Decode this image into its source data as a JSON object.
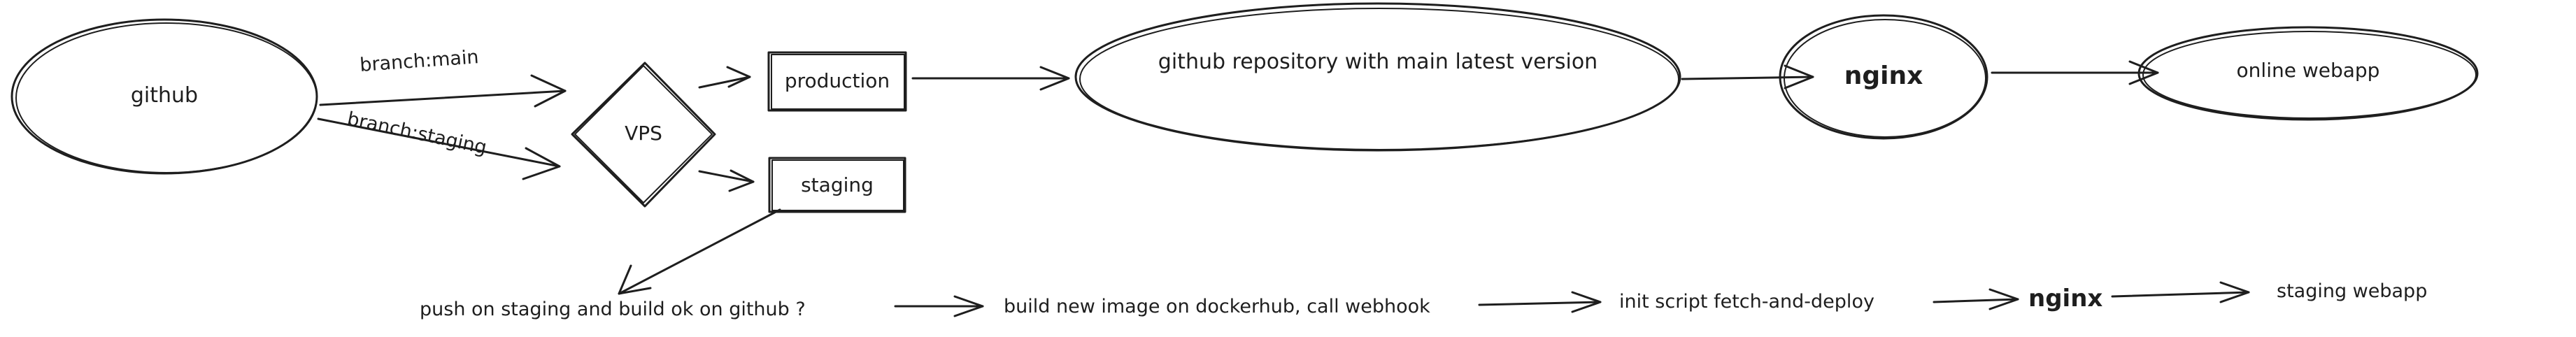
{
  "nodes": {
    "github": "github",
    "vps": "VPS",
    "production": "production",
    "staging": "staging",
    "repo": "github repository with main latest version",
    "nginx_main": "nginx",
    "online_webapp": "online webapp"
  },
  "edges": {
    "branch_main": "branch:main",
    "branch_staging": "branch:staging"
  },
  "pipeline": {
    "push": "push on staging and build ok on github ?",
    "build": "build new image on dockerhub, call webhook",
    "init": "init script fetch-and-deploy",
    "nginx": "nginx",
    "staging_webapp": "staging webapp"
  }
}
